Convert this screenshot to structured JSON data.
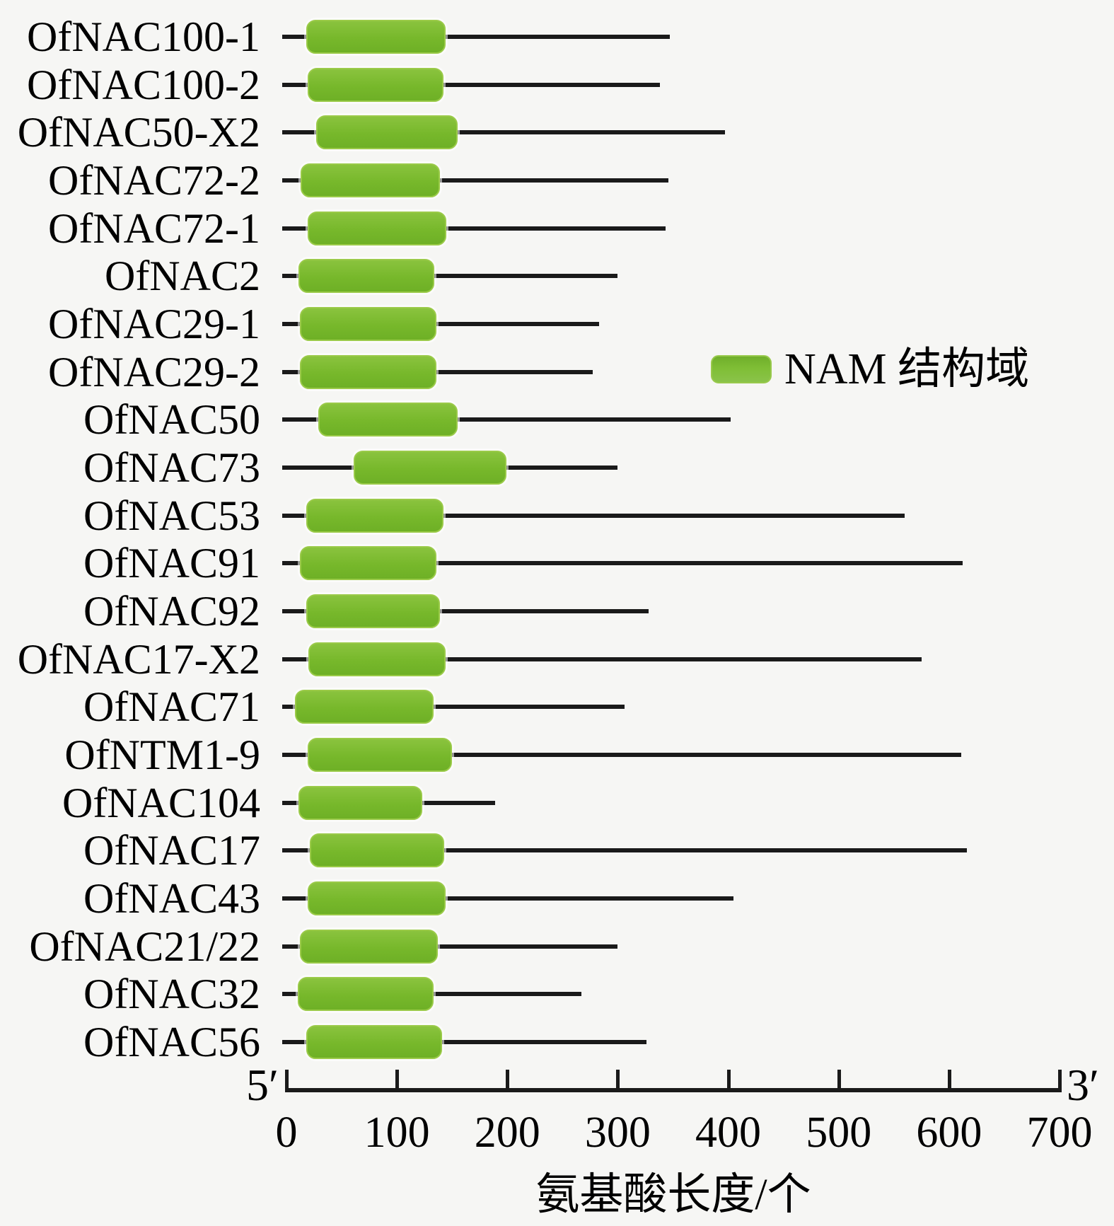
{
  "legend": {
    "label": "NAM 结构域"
  },
  "axis": {
    "five_prime_label": "5′",
    "three_prime_label": "3′",
    "tick_values": [
      0,
      100,
      200,
      300,
      400,
      500,
      600,
      700
    ],
    "range": [
      0,
      700
    ],
    "title": "氨基酸长度/个"
  },
  "colors": {
    "domain_fill": "#77b82b",
    "domain_edge": "#9aca48",
    "line": "#1a1a1a",
    "background": "#f6f6f4"
  },
  "chart_data": {
    "type": "bar",
    "orientation": "horizontal",
    "title": "",
    "xlabel": "氨基酸长度/个",
    "ylabel": "",
    "xlim": [
      0,
      700
    ],
    "grid": false,
    "legend_entries": [
      "NAM 结构域"
    ],
    "unit": "amino acids",
    "genes": [
      {
        "name": "OfNAC100-1",
        "length": 347,
        "nam_domain": [
          18,
          144
        ]
      },
      {
        "name": "OfNAC100-2",
        "length": 338,
        "nam_domain": [
          19,
          142
        ]
      },
      {
        "name": "OfNAC50-X2",
        "length": 397,
        "nam_domain": [
          27,
          155
        ]
      },
      {
        "name": "OfNAC72-2",
        "length": 346,
        "nam_domain": [
          13,
          139
        ]
      },
      {
        "name": "OfNAC72-1",
        "length": 343,
        "nam_domain": [
          19,
          145
        ]
      },
      {
        "name": "OfNAC2",
        "length": 300,
        "nam_domain": [
          11,
          134
        ]
      },
      {
        "name": "OfNAC29-1",
        "length": 283,
        "nam_domain": [
          12,
          136
        ]
      },
      {
        "name": "OfNAC29-2",
        "length": 277,
        "nam_domain": [
          12,
          136
        ]
      },
      {
        "name": "OfNAC50",
        "length": 402,
        "nam_domain": [
          29,
          155
        ]
      },
      {
        "name": "OfNAC73",
        "length": 300,
        "nam_domain": [
          61,
          199
        ]
      },
      {
        "name": "OfNAC53",
        "length": 560,
        "nam_domain": [
          18,
          142
        ]
      },
      {
        "name": "OfNAC91",
        "length": 612,
        "nam_domain": [
          12,
          136
        ]
      },
      {
        "name": "OfNAC92",
        "length": 328,
        "nam_domain": [
          18,
          139
        ]
      },
      {
        "name": "OfNAC17-X2",
        "length": 575,
        "nam_domain": [
          20,
          144
        ]
      },
      {
        "name": "OfNAC71",
        "length": 306,
        "nam_domain": [
          8,
          133
        ]
      },
      {
        "name": "OfNTM1-9",
        "length": 611,
        "nam_domain": [
          19,
          150
        ]
      },
      {
        "name": "OfNAC104",
        "length": 189,
        "nam_domain": [
          11,
          123
        ]
      },
      {
        "name": "OfNAC17",
        "length": 616,
        "nam_domain": [
          21,
          143
        ]
      },
      {
        "name": "OfNAC43",
        "length": 405,
        "nam_domain": [
          19,
          144
        ]
      },
      {
        "name": "OfNAC21/22",
        "length": 300,
        "nam_domain": [
          12,
          137
        ]
      },
      {
        "name": "OfNAC32",
        "length": 267,
        "nam_domain": [
          10,
          133
        ]
      },
      {
        "name": "OfNAC56",
        "length": 326,
        "nam_domain": [
          18,
          141
        ]
      }
    ]
  }
}
